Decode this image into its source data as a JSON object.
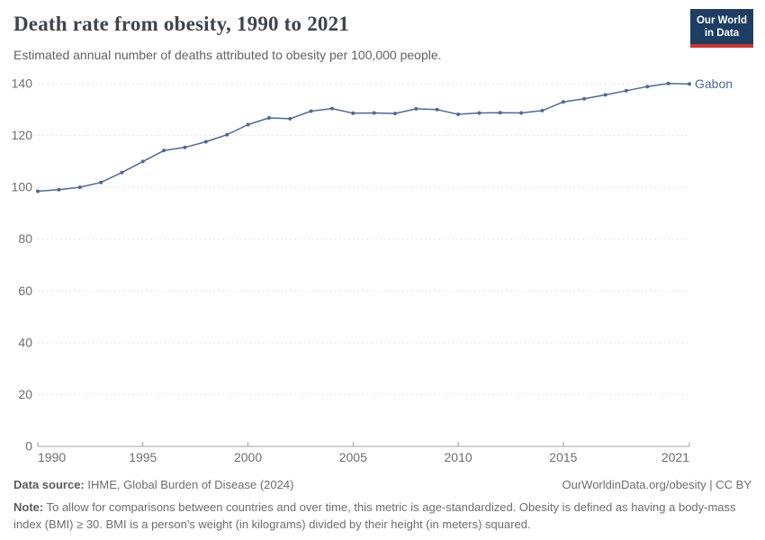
{
  "header": {
    "title": "Death rate from obesity, 1990 to 2021",
    "subtitle": "Estimated annual number of deaths attributed to obesity per 100,000 people.",
    "logo": {
      "line1": "Our World",
      "line2": "in Data"
    }
  },
  "chart_data": {
    "type": "line",
    "title": "Death rate from obesity, 1990 to 2021",
    "xlabel": "",
    "ylabel": "",
    "xlim": [
      1990,
      2021
    ],
    "ylim": [
      0,
      140
    ],
    "x_ticks": [
      1990,
      1995,
      2000,
      2005,
      2010,
      2015,
      2021
    ],
    "y_ticks": [
      0,
      20,
      40,
      60,
      80,
      100,
      120,
      140
    ],
    "grid": "horizontal-dashed",
    "legend_position": "end-of-line",
    "end_label": "Gabon",
    "x": [
      1990,
      1991,
      1992,
      1993,
      1994,
      1995,
      1996,
      1997,
      1998,
      1999,
      2000,
      2001,
      2002,
      2003,
      2004,
      2005,
      2006,
      2007,
      2008,
      2009,
      2010,
      2011,
      2012,
      2013,
      2014,
      2015,
      2016,
      2017,
      2018,
      2019,
      2020,
      2021
    ],
    "series": [
      {
        "name": "Gabon",
        "color": "#4d699b",
        "values": [
          98.5,
          99.1,
          100.0,
          101.9,
          105.7,
          110.0,
          114.2,
          115.4,
          117.6,
          120.3,
          124.2,
          126.8,
          126.5,
          129.4,
          130.4,
          128.6,
          128.7,
          128.5,
          130.3,
          130.0,
          128.2,
          128.7,
          128.8,
          128.7,
          129.6,
          133.0,
          134.2,
          135.7,
          137.3,
          138.9,
          140.1,
          139.9
        ]
      }
    ]
  },
  "footer": {
    "datasource_label": "Data source:",
    "datasource_text": "IHME, Global Burden of Disease (2024)",
    "link": "OurWorldinData.org/obesity | CC BY",
    "note_label": "Note:",
    "note_text": "To allow for comparisons between countries and over time, this metric is age-standardized. Obesity is defined as having a body-mass index (BMI) ≥ 30. BMI is a person's weight (in kilograms) divided by their height (in meters) squared."
  },
  "colors": {
    "line": "#4d699b",
    "grid": "#e2e2e2",
    "axis": "#a3a3a3",
    "tick_label": "#6e6e6e",
    "logo_bg": "#1d3d63",
    "logo_accent": "#d1342f"
  }
}
